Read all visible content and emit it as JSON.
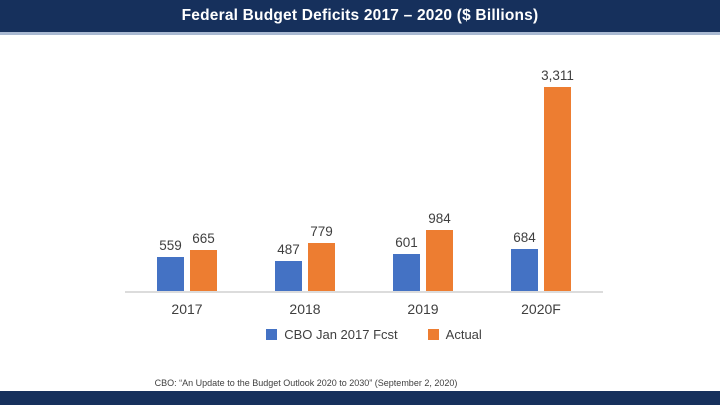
{
  "title_bar": {
    "title": "Federal Budget Deficits 2017 – 2020 ($ Billions)"
  },
  "chart_data": {
    "type": "bar",
    "title": "Federal Budget Deficits 2017 – 2020 ($ Billions)",
    "categories": [
      "2017",
      "2018",
      "2019",
      "2020F"
    ],
    "series": [
      {
        "name": "CBO Jan 2017 Fcst",
        "color": "#4472C4",
        "values": [
          559,
          487,
          601,
          684
        ]
      },
      {
        "name": "Actual",
        "color": "#ED7D31",
        "values": [
          665,
          779,
          984,
          3311
        ]
      }
    ],
    "ylim": [
      0,
      3311
    ],
    "xlabel": "",
    "ylabel": "",
    "grid": false,
    "value_labels_shown": true,
    "legend_position": "bottom",
    "axis_line_color": "#DCDCDC"
  },
  "footer": {
    "citation": "CBO: “An Update to the Budget Outlook 2020 to 2030” (September 2, 2020)"
  },
  "colors": {
    "navy_bar": "#16305C",
    "title_underline": "#A9B9D2",
    "forecast_blue": "#4472C4",
    "actual_orange": "#ED7D31",
    "label_text": "#3F3F3F",
    "background": "#FFFFFF"
  }
}
